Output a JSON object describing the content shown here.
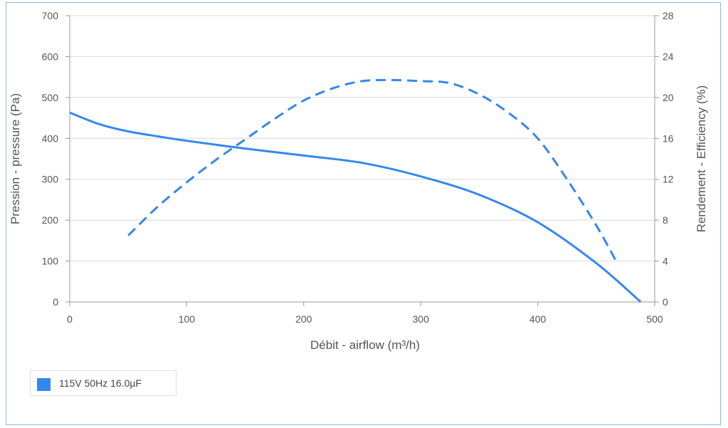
{
  "colors": {
    "series": "#3388ee",
    "grid": "#d9d9d9",
    "axis": "#999999",
    "text": "#555555"
  },
  "legend": {
    "label": "115V 50Hz 16.0µF"
  },
  "chart_data": {
    "type": "line",
    "xlabel": "Débit - airflow (m³/h)",
    "ylabel_left": "Pression - pressure (Pa)",
    "ylabel_right": "Rendement - Efficiency (%)",
    "xlim": [
      0,
      500
    ],
    "ylim_left": [
      0,
      700
    ],
    "ylim_right": [
      0,
      28
    ],
    "x_ticks": [
      "0",
      "100",
      "200",
      "300",
      "400",
      "500"
    ],
    "y_ticks_left": [
      "0",
      "100",
      "200",
      "300",
      "400",
      "500",
      "600",
      "700"
    ],
    "y_ticks_right": [
      "0",
      "4",
      "8",
      "12",
      "16",
      "20",
      "24",
      "28"
    ],
    "grid": true,
    "legend_position": "bottom-left",
    "series": [
      {
        "axis": "left",
        "style": "solid",
        "x": [
          0,
          25,
          50,
          75,
          100,
          150,
          200,
          250,
          300,
          350,
          400,
          450,
          488
        ],
        "y": [
          463,
          435,
          417,
          405,
          394,
          375,
          358,
          340,
          307,
          262,
          195,
          95,
          0
        ]
      },
      {
        "axis": "right",
        "style": "dashed",
        "x": [
          50,
          75,
          100,
          125,
          150,
          175,
          200,
          225,
          250,
          275,
          300,
          325,
          350,
          375,
          400,
          425,
          450,
          467
        ],
        "y": [
          6.5,
          9.3,
          11.7,
          13.9,
          15.9,
          17.9,
          19.7,
          20.9,
          21.6,
          21.7,
          21.6,
          21.4,
          20.3,
          18.5,
          16.0,
          12.0,
          7.5,
          4.0
        ]
      }
    ]
  }
}
